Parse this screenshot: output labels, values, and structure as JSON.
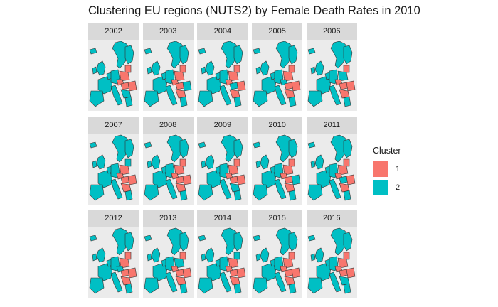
{
  "chart_data": {
    "type": "choropleth-facets",
    "title": "Clustering EU regions (NUTS2) by Female Death Rates in 2010",
    "facets": [
      "2002",
      "2003",
      "2004",
      "2005",
      "2006",
      "2007",
      "2008",
      "2009",
      "2010",
      "2011",
      "2012",
      "2013",
      "2014",
      "2015",
      "2016"
    ],
    "legend": {
      "title": "Cluster",
      "placement": "right",
      "entries": [
        {
          "label": "1",
          "color": "#F8766D"
        },
        {
          "label": "2",
          "color": "#00BFC4"
        }
      ]
    }
  }
}
